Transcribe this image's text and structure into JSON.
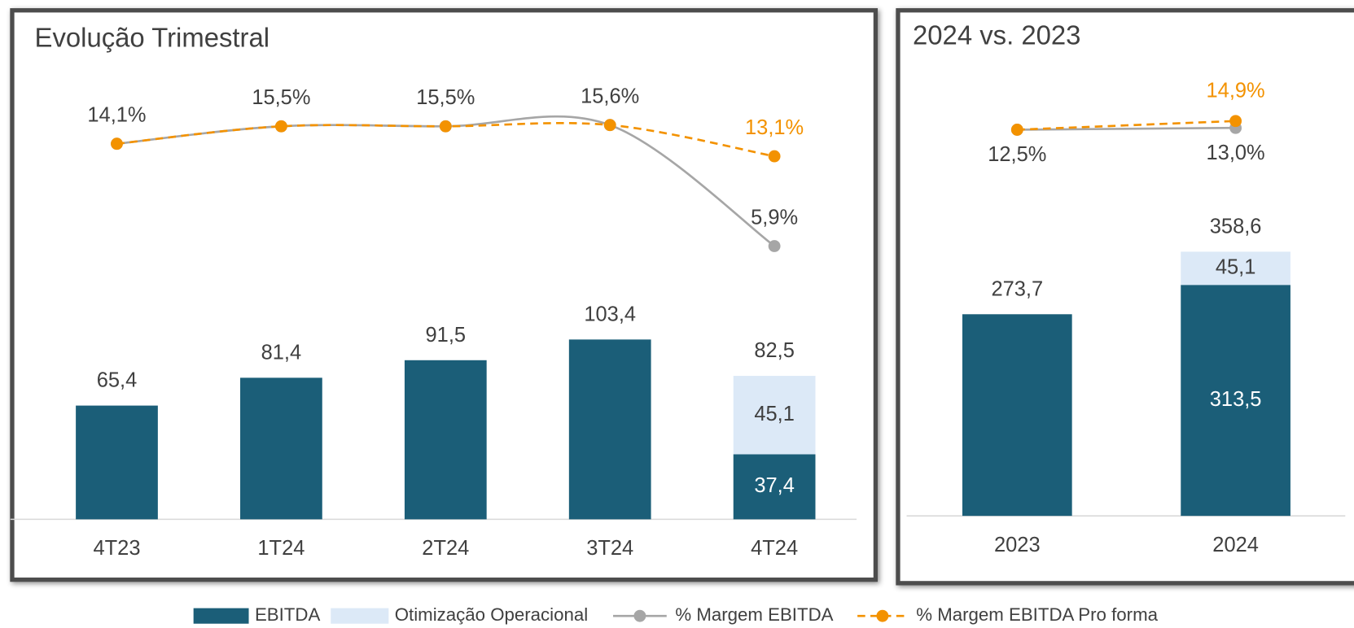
{
  "chart_data": [
    {
      "type": "bar",
      "title": "Evolução Trimestral",
      "categories": [
        "4T23",
        "1T24",
        "2T24",
        "3T24",
        "4T24"
      ],
      "ylim": [
        0,
        254
      ],
      "y2lim": [
        -16,
        19.4
      ],
      "series": [
        {
          "name": "EBITDA",
          "type": "bar",
          "color": "#1b5e78",
          "values": [
            65.4,
            81.4,
            91.5,
            103.4,
            37.4
          ],
          "value_labels": [
            "65,4",
            "81,4",
            "91,5",
            "103,4",
            "37,4"
          ]
        },
        {
          "name": "Otimização Operacional",
          "type": "bar",
          "color": "#dce9f7",
          "values": [
            null,
            null,
            null,
            null,
            45.1
          ],
          "value_labels": [
            null,
            null,
            null,
            null,
            "45,1"
          ]
        },
        {
          "name": "% Margem EBITDA",
          "type": "line",
          "axis": "y2",
          "color": "#a6a6a6",
          "values": [
            14.1,
            15.5,
            15.5,
            15.6,
            5.9
          ],
          "value_labels": [
            "14,1%",
            "15,5%",
            "15,5%",
            "15,6%",
            "5,9%"
          ]
        },
        {
          "name": "% Margem EBITDA Pro forma",
          "type": "line",
          "axis": "y2",
          "dashed": true,
          "color": "#f39200",
          "values": [
            14.1,
            15.5,
            15.5,
            15.6,
            13.1
          ],
          "value_labels": [
            null,
            null,
            null,
            null,
            "13,1%"
          ]
        }
      ],
      "total_labels": [
        null,
        null,
        null,
        null,
        "82,5"
      ]
    },
    {
      "type": "bar",
      "title": "2024 vs. 2023",
      "categories": [
        "2023",
        "2024"
      ],
      "ylim": [
        0,
        630
      ],
      "y2lim": [
        -94,
        34
      ],
      "series": [
        {
          "type": "bar",
          "color": "#1b5e78",
          "values": [
            273.7,
            313.5
          ],
          "value_labels": [
            "273,7",
            "313,5"
          ]
        },
        {
          "type": "bar",
          "color": "#dce9f7",
          "values": [
            null,
            45.1
          ],
          "value_labels": [
            null,
            "45,1"
          ]
        },
        {
          "type": "line",
          "axis": "y2",
          "color": "#a6a6a6",
          "values": [
            12.5,
            13.0
          ],
          "value_labels": [
            "12,5%",
            "13,0%"
          ]
        },
        {
          "type": "line",
          "axis": "y2",
          "dashed": true,
          "color": "#f39200",
          "values": [
            12.5,
            14.9
          ],
          "value_labels": [
            null,
            "14,9%"
          ]
        }
      ],
      "total_labels": [
        null,
        "358,6"
      ]
    }
  ]
}
